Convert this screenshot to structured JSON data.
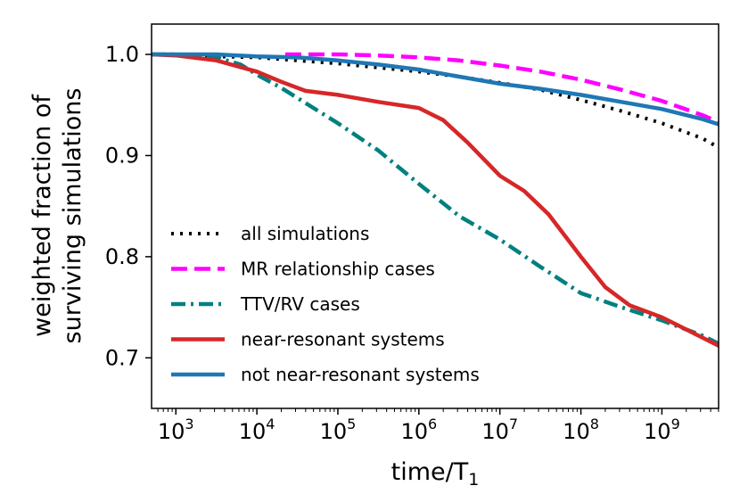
{
  "chart_data": {
    "type": "line",
    "title": "",
    "xlabel": "time/T",
    "xlabel_subscript": "1",
    "ylabel_line1": "weighted fraction of",
    "ylabel_line2": "surviving simulations",
    "xscale": "log",
    "xlim_log10": [
      2.7,
      9.7
    ],
    "ylim": [
      0.65,
      1.03
    ],
    "x_tick_labels": [
      {
        "base": "10",
        "exp": "3"
      },
      {
        "base": "10",
        "exp": "4"
      },
      {
        "base": "10",
        "exp": "5"
      },
      {
        "base": "10",
        "exp": "6"
      },
      {
        "base": "10",
        "exp": "7"
      },
      {
        "base": "10",
        "exp": "8"
      },
      {
        "base": "10",
        "exp": "9"
      }
    ],
    "x_ticks_log10": [
      3,
      4,
      5,
      6,
      7,
      8,
      9
    ],
    "y_ticks": [
      0.7,
      0.8,
      0.9,
      1.0
    ],
    "y_tick_labels": [
      "0.7",
      "0.8",
      "0.9",
      "1.0"
    ],
    "grid": false,
    "legend_position": "lower-left",
    "series": [
      {
        "name": "all simulations",
        "color": "#000000",
        "style": "dotted",
        "log10_x": [
          2.7,
          3.0,
          3.5,
          4.0,
          4.5,
          5.0,
          5.5,
          6.0,
          6.5,
          7.0,
          7.5,
          8.0,
          8.5,
          9.0,
          9.5,
          9.7
        ],
        "y": [
          1.0,
          0.999,
          0.998,
          0.997,
          0.994,
          0.991,
          0.987,
          0.983,
          0.978,
          0.972,
          0.965,
          0.955,
          0.944,
          0.932,
          0.917,
          0.908
        ]
      },
      {
        "name": "MR relationship cases",
        "color": "#ff00ff",
        "style": "dashed",
        "log10_x": [
          4.35,
          5.0,
          5.5,
          6.0,
          6.5,
          7.0,
          7.5,
          8.0,
          8.5,
          9.0,
          9.5,
          9.7
        ],
        "y": [
          1.0,
          1.0,
          0.999,
          0.997,
          0.994,
          0.989,
          0.983,
          0.975,
          0.965,
          0.954,
          0.94,
          0.933
        ]
      },
      {
        "name": "TTV/RV cases",
        "color": "#008080",
        "style": "dashdot",
        "log10_x": [
          2.7,
          3.0,
          3.5,
          3.8,
          4.0,
          4.3,
          4.6,
          5.0,
          5.5,
          6.0,
          6.5,
          7.0,
          7.5,
          8.0,
          8.5,
          9.0,
          9.5,
          9.7
        ],
        "y": [
          1.0,
          1.0,
          0.997,
          0.99,
          0.98,
          0.967,
          0.952,
          0.932,
          0.905,
          0.872,
          0.84,
          0.817,
          0.79,
          0.764,
          0.75,
          0.737,
          0.722,
          0.714
        ]
      },
      {
        "name": "near-resonant systems",
        "color": "#d62728",
        "style": "solid",
        "log10_x": [
          2.7,
          3.0,
          3.5,
          4.0,
          4.3,
          4.6,
          5.0,
          5.5,
          6.0,
          6.3,
          6.6,
          7.0,
          7.3,
          7.6,
          8.0,
          8.3,
          8.6,
          9.0,
          9.3,
          9.5,
          9.7
        ],
        "y": [
          1.0,
          0.999,
          0.994,
          0.983,
          0.973,
          0.964,
          0.96,
          0.953,
          0.947,
          0.935,
          0.913,
          0.88,
          0.865,
          0.842,
          0.8,
          0.77,
          0.752,
          0.74,
          0.728,
          0.72,
          0.712
        ]
      },
      {
        "name": "not near-resonant systems",
        "color": "#1f77b4",
        "style": "solid",
        "log10_x": [
          2.7,
          3.0,
          3.5,
          4.0,
          4.5,
          5.0,
          5.5,
          6.0,
          6.5,
          7.0,
          7.5,
          8.0,
          8.5,
          9.0,
          9.5,
          9.7
        ],
        "y": [
          1.0,
          1.0,
          1.0,
          0.998,
          0.997,
          0.994,
          0.99,
          0.985,
          0.978,
          0.971,
          0.966,
          0.96,
          0.953,
          0.946,
          0.936,
          0.931
        ]
      }
    ]
  }
}
